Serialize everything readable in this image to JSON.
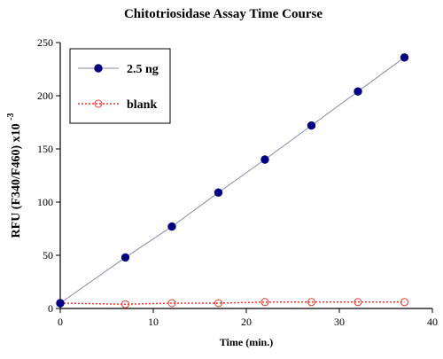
{
  "chart_data": {
    "type": "line",
    "title": "Chitotriosidase Assay Time Course",
    "xlabel": "Time (min.)",
    "ylabel": "RFU (F340/F460) x10",
    "ylabel_exponent": "-3",
    "xlim": [
      0,
      40
    ],
    "ylim": [
      0,
      250
    ],
    "x_ticks": [
      0,
      10,
      20,
      30,
      40
    ],
    "y_ticks": [
      0,
      50,
      100,
      150,
      200,
      250
    ],
    "grid": false,
    "legend_position": "top-left",
    "series": [
      {
        "name": "2.5 ng",
        "color": "#000080",
        "line_color": "#8a8aa8",
        "marker": "filled-circle",
        "line_style": "solid",
        "x": [
          0,
          7,
          12,
          17,
          22,
          27,
          32,
          37
        ],
        "y": [
          5,
          48,
          77,
          109,
          140,
          172,
          204,
          236
        ]
      },
      {
        "name": "blank",
        "color": "#e8382c",
        "line_color": "#e8382c",
        "marker": "open-circle",
        "line_style": "dotted",
        "x": [
          0,
          7,
          12,
          17,
          22,
          27,
          32,
          37
        ],
        "y": [
          5,
          4,
          5,
          5,
          6,
          6,
          6,
          6
        ]
      }
    ]
  }
}
